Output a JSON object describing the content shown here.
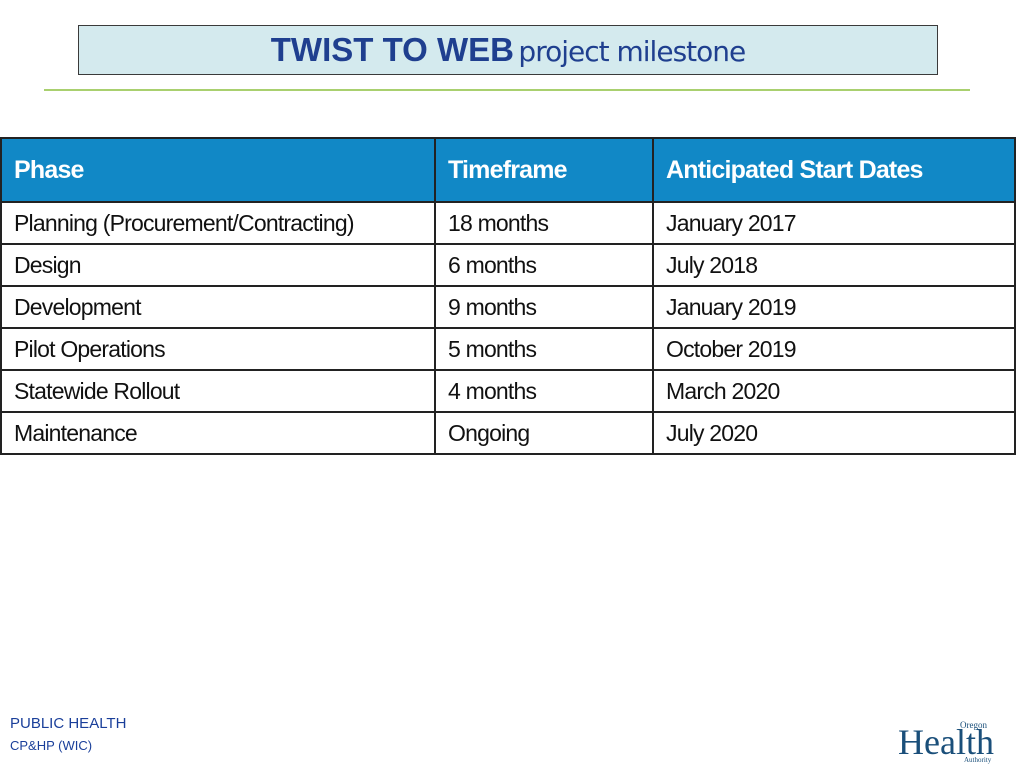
{
  "header": {
    "title_main": "TWIST TO WEB",
    "title_sub": "project milestone"
  },
  "table": {
    "columns": [
      "Phase",
      "Timeframe",
      "Anticipated Start Dates"
    ],
    "rows": [
      [
        "Planning (Procurement/Contracting)",
        "18 months",
        "January 2017"
      ],
      [
        "Design",
        "6 months",
        "July 2018"
      ],
      [
        "Development",
        "9 months",
        "January 2019"
      ],
      [
        "Pilot Operations",
        "5 months",
        "October 2019"
      ],
      [
        "Statewide Rollout",
        "4 months",
        "March 2020"
      ],
      [
        "Maintenance",
        "Ongoing",
        "July 2020"
      ]
    ]
  },
  "footer": {
    "line1": "PUBLIC HEALTH",
    "line2": "CP&HP (WIC)"
  },
  "logo": {
    "top": "Oregon",
    "main": "Health",
    "bottom": "Authority"
  }
}
